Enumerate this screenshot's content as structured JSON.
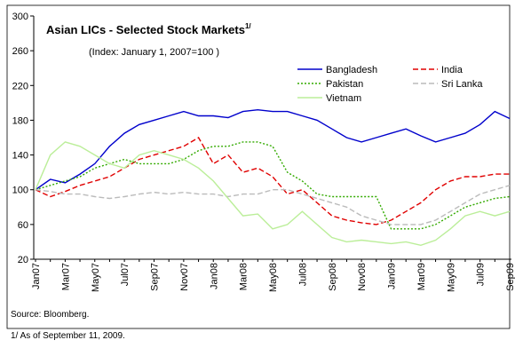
{
  "chart_data": {
    "type": "line",
    "title": "Asian LICs - Selected Stock Markets",
    "title_note": "1/",
    "subtitle": "(Index: January 1, 2007=100 )",
    "categories": [
      "Jan07",
      null,
      "Mar07",
      null,
      "May07",
      null,
      "Jul07",
      null,
      "Sep07",
      null,
      "Nov07",
      null,
      "Jan08",
      null,
      "Mar08",
      null,
      "May08",
      null,
      "Jul08",
      null,
      "Sep08",
      null,
      "Nov08",
      null,
      "Jan09",
      null,
      "Mar09",
      null,
      "May09",
      null,
      "Jul09",
      null,
      "Sep09"
    ],
    "series": [
      {
        "name": "Bangladesh",
        "color": "#0000cc",
        "dash": "solid",
        "values": [
          100,
          112,
          108,
          118,
          130,
          150,
          165,
          175,
          180,
          185,
          190,
          185,
          185,
          183,
          190,
          192,
          190,
          190,
          185,
          180,
          170,
          160,
          155,
          160,
          165,
          170,
          162,
          155,
          160,
          165,
          175,
          190,
          182
        ]
      },
      {
        "name": "India",
        "color": "#e00000",
        "dash": "dashed",
        "values": [
          100,
          92,
          98,
          105,
          110,
          115,
          125,
          135,
          140,
          145,
          150,
          160,
          130,
          140,
          120,
          125,
          115,
          95,
          100,
          85,
          70,
          65,
          62,
          60,
          65,
          75,
          85,
          100,
          110,
          115,
          115,
          118,
          118
        ]
      },
      {
        "name": "Pakistan",
        "color": "#33aa00",
        "dash": "dotted",
        "values": [
          100,
          105,
          110,
          115,
          125,
          130,
          135,
          130,
          130,
          130,
          135,
          145,
          150,
          150,
          155,
          155,
          150,
          120,
          110,
          95,
          92,
          92,
          92,
          92,
          55,
          55,
          55,
          60,
          70,
          80,
          85,
          90,
          92
        ]
      },
      {
        "name": "Sri Lanka",
        "color": "#bbbbbb",
        "dash": "dashed",
        "values": [
          100,
          98,
          95,
          95,
          92,
          90,
          92,
          95,
          97,
          95,
          97,
          95,
          95,
          92,
          95,
          95,
          100,
          100,
          95,
          90,
          85,
          80,
          70,
          65,
          60,
          60,
          60,
          65,
          75,
          85,
          95,
          100,
          105
        ]
      },
      {
        "name": "Vietnam",
        "color": "#bbee99",
        "dash": "solid",
        "values": [
          100,
          140,
          155,
          150,
          140,
          130,
          125,
          140,
          145,
          140,
          135,
          125,
          110,
          90,
          70,
          72,
          55,
          60,
          75,
          60,
          45,
          40,
          42,
          40,
          38,
          40,
          36,
          42,
          55,
          70,
          75,
          70,
          75
        ]
      }
    ],
    "ylim": [
      20,
      300
    ],
    "yticks": [
      20,
      60,
      100,
      140,
      180,
      220,
      260,
      300
    ],
    "notes": [
      "Source: Bloomberg.",
      "1/ As of September 11, 2009."
    ]
  }
}
